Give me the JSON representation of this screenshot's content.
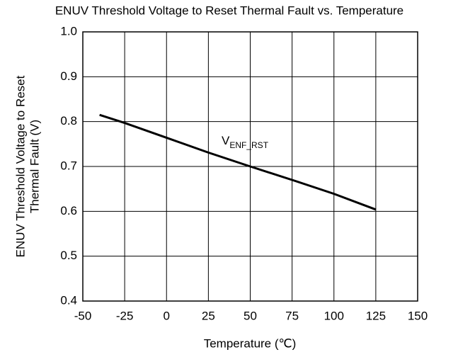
{
  "chart_data": {
    "type": "line",
    "title": "ENUV Threshold Voltage to Reset Thermal Fault vs. Temperature",
    "xlabel": "Temperature (℃)",
    "ylabel": [
      "ENUV Threshold Voltage to Reset",
      "Thermal Fault (V)"
    ],
    "annotation": {
      "text": "V",
      "subscript": "ENF_RST"
    },
    "x": [
      -40,
      -25,
      0,
      25,
      50,
      75,
      100,
      125
    ],
    "series": [
      {
        "name": "VENF_RST",
        "color": "#000000",
        "values": [
          0.815,
          0.797,
          0.764,
          0.731,
          0.7,
          0.67,
          0.639,
          0.604
        ]
      }
    ],
    "xlim": [
      -50,
      150
    ],
    "xticks": [
      -50,
      -25,
      0,
      25,
      50,
      75,
      100,
      125,
      150
    ],
    "ylim": [
      0.4,
      1.0
    ],
    "yticks": [
      0.4,
      0.5,
      0.6,
      0.7,
      0.8,
      0.9,
      {
        "value": 1.0,
        "label": "1.0"
      }
    ],
    "grid": true
  }
}
